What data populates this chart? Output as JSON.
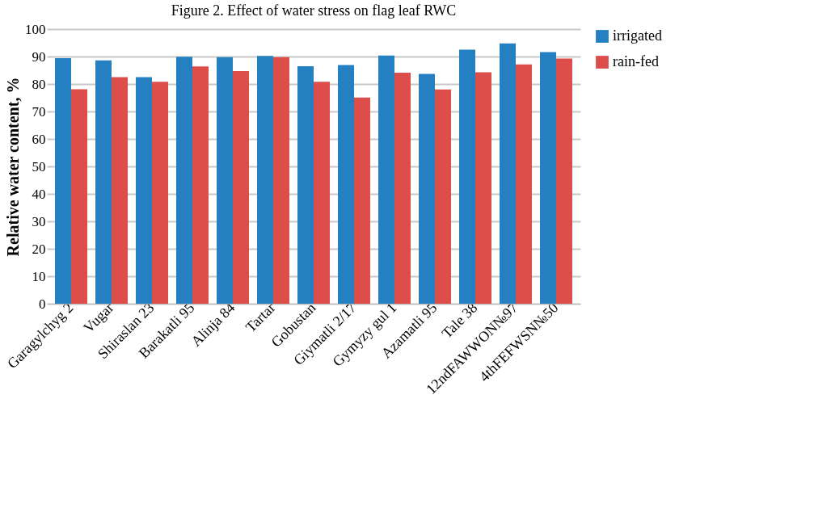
{
  "chart_data": {
    "type": "bar",
    "title": "Figure 2. Effect of water stress on flag leaf RWC",
    "ylabel": "Relative water content, %",
    "categories": [
      "Garagylchyg 2",
      "Vugar",
      "Shiraslan 23",
      "Barakatli 95",
      "Alinja 84",
      "Tartar",
      "Gobustan",
      "Giymatli 2/17",
      "Gymyzy gul 1",
      "Azamatli 95",
      "Tale 38",
      "12ndFAWWON№97",
      "4thFEFWSN№50"
    ],
    "series": [
      {
        "name": "irrigated",
        "color": "#2580c2",
        "values": [
          89.4,
          88.6,
          82.5,
          89.9,
          89.8,
          90.2,
          86.5,
          86.9,
          90.4,
          83.7,
          92.5,
          94.8,
          91.6
        ]
      },
      {
        "name": "rain-fed",
        "color": "#dd4e4b",
        "values": [
          78.1,
          82.5,
          80.8,
          86.4,
          84.7,
          89.8,
          80.8,
          75.1,
          84.1,
          78.0,
          84.3,
          87.1,
          89.3
        ]
      }
    ],
    "ylim": [
      0,
      100
    ],
    "yticks": [
      0,
      10,
      20,
      30,
      40,
      50,
      60,
      70,
      80,
      90,
      100
    ],
    "grid": "y",
    "legend": "right"
  }
}
